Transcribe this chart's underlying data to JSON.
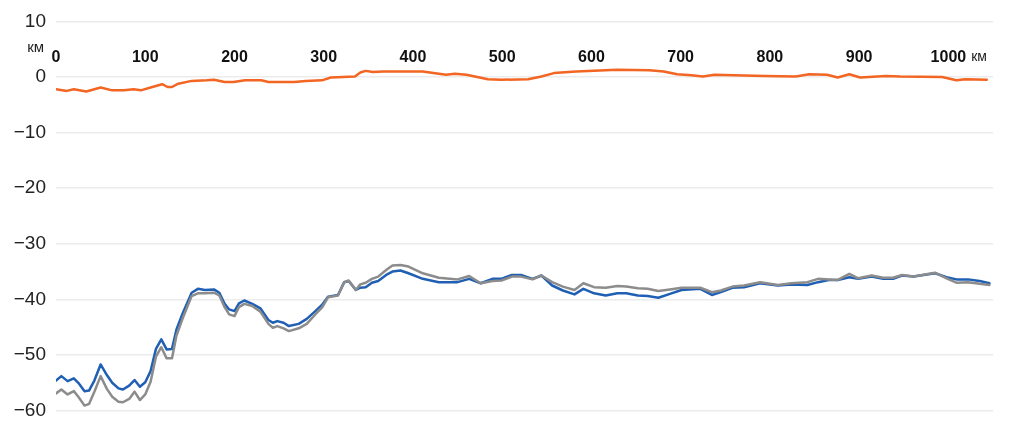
{
  "chart_data": {
    "type": "line",
    "xlabel": "км",
    "ylabel": "км",
    "x": [
      0,
      6,
      13,
      20,
      25,
      32,
      37,
      43,
      50,
      57,
      63,
      70,
      75,
      82,
      88,
      94,
      100,
      106,
      112,
      118,
      124,
      130,
      135,
      142,
      152,
      159,
      167,
      177,
      183,
      189,
      194,
      200,
      205,
      211,
      220,
      229,
      238,
      243,
      248,
      255,
      261,
      272,
      281,
      290,
      298,
      305,
      316,
      323,
      328,
      336,
      341,
      347,
      354,
      361,
      370,
      377,
      386,
      395,
      411,
      429,
      450,
      463,
      476,
      489,
      499,
      511,
      521,
      534,
      544,
      556,
      568,
      581,
      591,
      603,
      616,
      629,
      639,
      652,
      663,
      675,
      688,
      701,
      722,
      735,
      745,
      758,
      771,
      789,
      809,
      824,
      842,
      854,
      866,
      876,
      889,
      899,
      914,
      927,
      938,
      948,
      961,
      985,
      998,
      1009,
      1022,
      1035,
      1046
    ],
    "series": [
      {
        "color": "#f26522",
        "x": [
          0,
          12,
          20,
          34,
          50,
          63,
          76,
          87,
          95,
          106,
          119,
          125,
          130,
          137,
          152,
          169,
          177,
          189,
          199,
          212,
          230,
          238,
          267,
          280,
          298,
          308,
          335,
          341,
          347,
          355,
          367,
          411,
          437,
          447,
          460,
          484,
          499,
          529,
          544,
          558,
          583,
          629,
          665,
          681,
          696,
          712,
          725,
          738,
          794,
          829,
          844,
          864,
          876,
          889,
          901,
          930,
          946,
          993,
          1009,
          1019,
          1043
        ],
        "values": [
          -2.2,
          -2.5,
          -2.2,
          -2.6,
          -1.9,
          -2.4,
          -2.4,
          -2.2,
          -2.4,
          -1.9,
          -1.3,
          -1.8,
          -1.8,
          -1.2,
          -0.7,
          -0.6,
          -0.5,
          -0.9,
          -0.9,
          -0.6,
          -0.6,
          -0.9,
          -0.9,
          -0.7,
          -0.6,
          -0.1,
          0.1,
          0.8,
          1.1,
          0.9,
          1.0,
          1.0,
          0.4,
          0.6,
          0.4,
          -0.4,
          -0.5,
          -0.4,
          0.1,
          0.7,
          1.0,
          1.3,
          1.2,
          1.0,
          0.5,
          0.3,
          0.1,
          0.4,
          0.2,
          0.1,
          0.5,
          0.4,
          -0.1,
          0.5,
          -0.1,
          0.2,
          0.1,
          0,
          -0.6,
          -0.4,
          -0.5
        ]
      },
      {
        "color": "#8c8c8c",
        "values": [
          -56.9,
          -56.2,
          -57.1,
          -56.5,
          -57.5,
          -59.1,
          -58.8,
          -56.6,
          -53.8,
          -56.1,
          -57.5,
          -58.4,
          -58.5,
          -57.9,
          -56.6,
          -58.1,
          -57.1,
          -54.8,
          -50.3,
          -48.6,
          -50.6,
          -50.6,
          -46.5,
          -43.4,
          -39.4,
          -38.9,
          -38.9,
          -38.8,
          -39.3,
          -41.4,
          -42.7,
          -43.0,
          -41.4,
          -40.8,
          -41.2,
          -42.2,
          -44.4,
          -45.1,
          -44.8,
          -45.2,
          -45.7,
          -45.2,
          -44.4,
          -42.8,
          -41.5,
          -39.6,
          -39.3,
          -36.9,
          -36.6,
          -38.3,
          -37.3,
          -37.0,
          -36.3,
          -35.9,
          -34.7,
          -33.9,
          -33.8,
          -34.1,
          -35.3,
          -36.1,
          -36.4,
          -35.8,
          -37.1,
          -36.7,
          -36.6,
          -35.9,
          -35.9,
          -36.4,
          -35.7,
          -36.9,
          -37.7,
          -38.3,
          -37.1,
          -37.8,
          -37.9,
          -37.6,
          -37.7,
          -38.0,
          -38.1,
          -38.5,
          -38.2,
          -37.9,
          -37.9,
          -38.7,
          -38.4,
          -37.7,
          -37.5,
          -36.9,
          -37.4,
          -37.1,
          -36.9,
          -36.3,
          -36.4,
          -36.5,
          -35.4,
          -36.2,
          -35.7,
          -36.1,
          -36.1,
          -35.6,
          -35.9,
          -35.2,
          -36.2,
          -37.0,
          -36.9,
          -37.2,
          -37.4
        ]
      },
      {
        "color": "#1f5fb4",
        "values": [
          -54.6,
          -53.8,
          -54.7,
          -54.2,
          -55.0,
          -56.5,
          -56.4,
          -54.6,
          -51.7,
          -53.6,
          -55.0,
          -56.0,
          -56.2,
          -55.5,
          -54.5,
          -55.7,
          -54.9,
          -52.9,
          -48.9,
          -47.2,
          -49.0,
          -48.9,
          -45.4,
          -42.5,
          -38.8,
          -38.1,
          -38.3,
          -38.2,
          -38.8,
          -40.8,
          -41.8,
          -42.1,
          -40.7,
          -40.2,
          -40.8,
          -41.6,
          -43.7,
          -44.2,
          -43.9,
          -44.2,
          -44.8,
          -44.4,
          -43.5,
          -42.2,
          -41.0,
          -39.5,
          -39.2,
          -36.9,
          -36.7,
          -38.3,
          -37.9,
          -37.8,
          -37.0,
          -36.7,
          -35.6,
          -35.0,
          -34.8,
          -35.3,
          -36.3,
          -36.9,
          -36.9,
          -36.3,
          -37.1,
          -36.3,
          -36.3,
          -35.6,
          -35.6,
          -36.3,
          -35.7,
          -37.5,
          -38.4,
          -39.1,
          -38.1,
          -38.9,
          -39.3,
          -38.9,
          -38.9,
          -39.3,
          -39.4,
          -39.7,
          -39.0,
          -38.3,
          -38.1,
          -39.2,
          -38.7,
          -37.9,
          -37.8,
          -37.1,
          -37.5,
          -37.3,
          -37.4,
          -36.9,
          -36.5,
          -36.5,
          -36.0,
          -36.3,
          -35.9,
          -36.3,
          -36.3,
          -35.7,
          -35.9,
          -35.3,
          -36.0,
          -36.4,
          -36.4,
          -36.7,
          -37.1
        ]
      }
    ],
    "xlim": [
      0,
      1050
    ],
    "xticks": [
      0,
      100,
      200,
      300,
      400,
      500,
      600,
      700,
      800,
      900,
      1000
    ],
    "ylim": [
      -60,
      10
    ],
    "yticks": [
      10,
      0,
      {
        "value": -10,
        "label": "−10"
      },
      {
        "value": -20,
        "label": "−20"
      },
      {
        "value": -30,
        "label": "−30"
      },
      {
        "value": -40,
        "label": "−40"
      },
      {
        "value": -50,
        "label": "−50"
      },
      {
        "value": -60,
        "label": "−60"
      }
    ],
    "grid": "y",
    "legend": false,
    "marker": "none",
    "line_style": "solid"
  }
}
